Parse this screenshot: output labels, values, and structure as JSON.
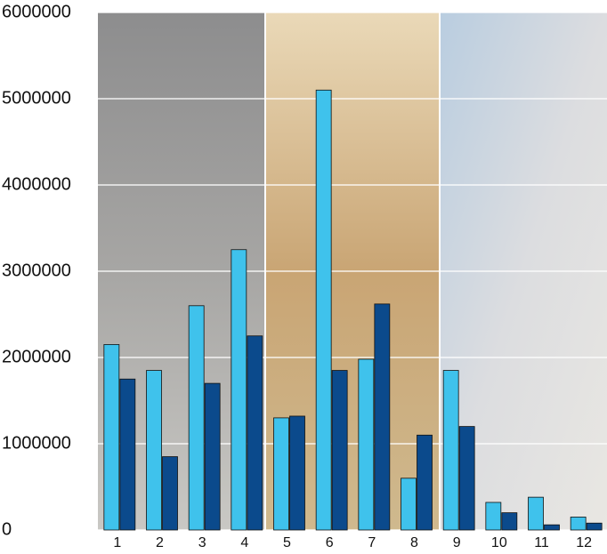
{
  "chart_data": {
    "type": "bar",
    "categories": [
      "1",
      "2",
      "3",
      "4",
      "5",
      "6",
      "7",
      "8",
      "9",
      "10",
      "11",
      "12"
    ],
    "series": [
      {
        "color": "#3fc2ec",
        "values": [
          2150000,
          1850000,
          2600000,
          3250000,
          1300000,
          5100000,
          1980000,
          600000,
          1850000,
          320000,
          380000,
          150000
        ]
      },
      {
        "color": "#0b4a8c",
        "values": [
          1750000,
          850000,
          1700000,
          2250000,
          1320000,
          1850000,
          2620000,
          1100000,
          1200000,
          200000,
          60000,
          80000
        ]
      }
    ],
    "ylim": [
      0,
      6000000
    ],
    "yticks": [
      0,
      1000000,
      2000000,
      3000000,
      4000000,
      5000000,
      6000000
    ],
    "grid": true
  }
}
